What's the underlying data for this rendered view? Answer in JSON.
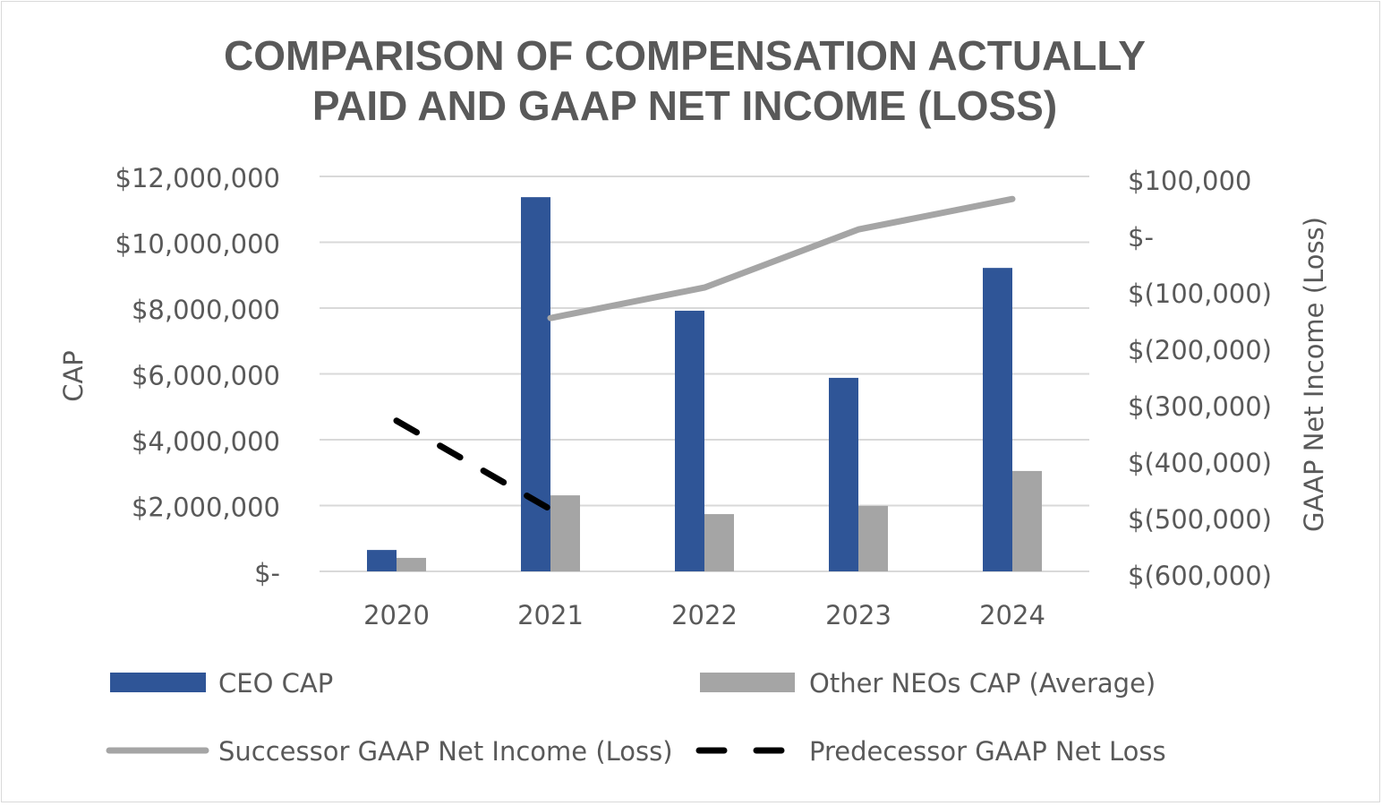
{
  "chart_data": {
    "type": "bar",
    "title_lines": [
      "COMPARISON OF COMPENSATION ACTUALLY",
      "PAID AND GAAP NET INCOME (LOSS)"
    ],
    "categories": [
      "2020",
      "2021",
      "2022",
      "2023",
      "2024"
    ],
    "ylabel": "CAP",
    "y2label": "GAAP Net Income (Loss)",
    "ylim": [
      0,
      12000000
    ],
    "y2lim": [
      -600000,
      100000
    ],
    "yticks": [
      0,
      2000000,
      4000000,
      6000000,
      8000000,
      10000000,
      12000000
    ],
    "ytick_labels": [
      "$-",
      "$2,000,000",
      "$4,000,000",
      "$6,000,000",
      "$8,000,000",
      "$10,000,000",
      "$12,000,000"
    ],
    "y2ticks": [
      100000,
      0,
      -100000,
      -200000,
      -300000,
      -400000,
      -500000,
      -600000
    ],
    "y2tick_labels": [
      "$100,000",
      "$-",
      "$(100,000)",
      "$(200,000)",
      "$(300,000)",
      "$(400,000)",
      "$(500,000)",
      "$(600,000)"
    ],
    "grid": true,
    "legend_position": "bottom",
    "series": [
      {
        "name": "CEO CAP",
        "kind": "bar",
        "axis": "left",
        "color": "#2f5597",
        "values": [
          650000,
          11370000,
          7920000,
          5880000,
          9220000
        ]
      },
      {
        "name": "Other NEOs CAP (Average)",
        "kind": "bar",
        "axis": "left",
        "color": "#a5a5a5",
        "values": [
          410000,
          2310000,
          1740000,
          1990000,
          3050000
        ]
      },
      {
        "name": "Successor GAAP Net Income (Loss)",
        "kind": "line",
        "axis": "right",
        "color": "#a5a5a5",
        "values": [
          null,
          -151000,
          -97000,
          6000,
          60000
        ]
      },
      {
        "name": "Predecessor GAAP Net Loss",
        "kind": "dashed-line",
        "axis": "right",
        "color": "#000000",
        "values": [
          -333000,
          -490000,
          null,
          null,
          null
        ]
      }
    ]
  }
}
